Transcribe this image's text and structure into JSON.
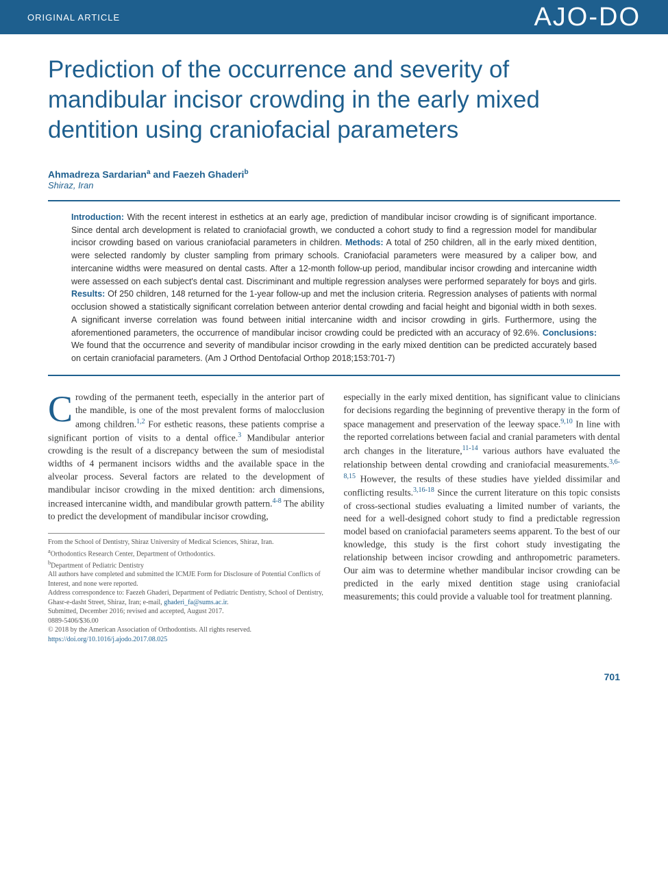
{
  "header": {
    "article_type": "ORIGINAL ARTICLE",
    "journal_logo": "AJO-DO"
  },
  "title": "Prediction of the occurrence and severity of mandibular incisor crowding in the early mixed dentition using craniofacial parameters",
  "authors_html": "Ahmadreza Sardarian",
  "authors_sup_a": "a",
  "authors_and": " and Faezeh Ghaderi",
  "authors_sup_b": "b",
  "location": "Shiraz, Iran",
  "abstract": {
    "intro_label": "Introduction:",
    "intro_text": " With the recent interest in esthetics at an early age, prediction of mandibular incisor crowding is of significant importance. Since dental arch development is related to craniofacial growth, we conducted a cohort study to find a regression model for mandibular incisor crowding based on various craniofacial parameters in children. ",
    "methods_label": "Methods:",
    "methods_text": " A total of 250 children, all in the early mixed dentition, were selected randomly by cluster sampling from primary schools. Craniofacial parameters were measured by a caliper bow, and intercanine widths were measured on dental casts. After a 12-month follow-up period, mandibular incisor crowding and intercanine width were assessed on each subject's dental cast. Discriminant and multiple regression analyses were performed separately for boys and girls. ",
    "results_label": "Results:",
    "results_text": " Of 250 children, 148 returned for the 1-year follow-up and met the inclusion criteria. Regression analyses of patients with normal occlusion showed a statistically significant correlation between anterior dental crowding and facial height and bigonial width in both sexes. A significant inverse correlation was found between initial intercanine width and incisor crowding in girls. Furthermore, using the aforementioned parameters, the occurrence of mandibular incisor crowding could be predicted with an accuracy of 92.6%. ",
    "concl_label": "Conclusions:",
    "concl_text": " We found that the occurrence and severity of mandibular incisor crowding in the early mixed dentition can be predicted accurately based on certain craniofacial parameters. (Am J Orthod Dentofacial Orthop 2018;153:701-7)"
  },
  "body": {
    "col1_p1_dropcap": "C",
    "col1_p1": "rowding of the permanent teeth, especially in the anterior part of the mandible, is one of the most prevalent forms of malocclusion among children.",
    "col1_ref1": "1,2",
    "col1_p1b": " For esthetic reasons, these patients comprise a significant portion of visits to a dental office.",
    "col1_ref2": "3",
    "col1_p1c": " Mandibular anterior crowding is the result of a discrepancy between the sum of mesiodistal widths of 4 permanent incisors widths and the available space in the alveolar process. Several factors are related to the development of mandibular incisor crowding in the mixed dentition: arch dimensions, increased intercanine width, and mandibular growth pattern.",
    "col1_ref3": "4-8",
    "col1_p1d": " The ability to predict the development of mandibular incisor crowding,",
    "col2_p1": "especially in the early mixed dentition, has significant value to clinicians for decisions regarding the beginning of preventive therapy in the form of space management and preservation of the leeway space.",
    "col2_ref1": "9,10",
    "col2_p1b": " In line with the reported correlations between facial and cranial parameters with dental arch changes in the literature,",
    "col2_ref2": "11-14",
    "col2_p1c": " various authors have evaluated the relationship between dental crowding and craniofacial measurements.",
    "col2_ref3": "3,6-8,15",
    "col2_p1d": " However, the results of these studies have yielded dissimilar and conflicting results.",
    "col2_ref4": "3,16-18",
    "col2_p1e": " Since the current literature on this topic consists of cross-sectional studies evaluating a limited number of variants, the need for a well-designed cohort study to find a predictable regression model based on craniofacial parameters seems apparent. To the best of our knowledge, this study is the first cohort study investigating the relationship between incisor crowding and anthropometric parameters. Our aim was to determine whether mandibular incisor crowding can be predicted in the early mixed dentition stage using craniofacial measurements; this could provide a valuable tool for treatment planning."
  },
  "footnotes": {
    "l1": "From the School of Dentistry, Shiraz University of Medical Sciences, Shiraz, Iran.",
    "l2a": "a",
    "l2": "Orthodontics Research Center, Department of Orthodontics.",
    "l3a": "b",
    "l3": "Department of Pediatric Dentistry",
    "l4": "All authors have completed and submitted the ICMJE Form for Disclosure of Potential Conflicts of Interest, and none were reported.",
    "l5a": "Address correspondence to: Faezeh Ghaderi, Department of Pediatric Dentistry, School of Dentistry, Ghasr-e-dasht Street, Shiraz, Iran; e-mail, ",
    "l5_email": "ghaderi_fa@sums.ac.ir",
    "l5b": ".",
    "l6": "Submitted, December 2016; revised and accepted, August 2017.",
    "l7": "0889-5406/$36.00",
    "l8": "© 2018 by the American Association of Orthodontists. All rights reserved.",
    "l9": "https://doi.org/10.1016/j.ajodo.2017.08.025"
  },
  "page_number": "701",
  "colors": {
    "brand": "#1e5f8e",
    "text": "#333333",
    "footnote": "#555555",
    "bg": "#ffffff"
  }
}
